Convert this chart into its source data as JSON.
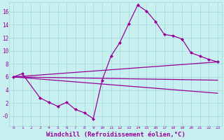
{
  "bg_color": "#c8f0f0",
  "line_color": "#990099",
  "grid_color": "#a0d8d8",
  "xlabel": "Windchill (Refroidissement éolien,°C)",
  "xlabel_color": "#990099",
  "ylim": [
    -1.5,
    17.5
  ],
  "xlim": [
    -0.5,
    23.5
  ],
  "yticks": [
    0,
    2,
    4,
    6,
    8,
    10,
    12,
    14,
    16
  ],
  "ytick_labels": [
    "-0",
    "2",
    "4",
    "6",
    "8",
    "10",
    "12",
    "14",
    "16"
  ],
  "xticks": [
    0,
    1,
    2,
    3,
    4,
    5,
    6,
    7,
    8,
    9,
    10,
    11,
    12,
    13,
    14,
    15,
    16,
    17,
    18,
    19,
    20,
    21,
    22,
    23
  ],
  "line1_x": [
    0,
    1,
    3,
    4,
    5,
    6,
    7,
    8,
    9,
    10,
    11,
    12,
    13,
    14,
    15,
    16,
    17,
    18,
    19,
    20,
    21,
    22,
    23
  ],
  "line1_y": [
    6.0,
    6.5,
    2.8,
    2.1,
    1.5,
    2.1,
    1.0,
    0.5,
    -0.4,
    5.5,
    9.2,
    11.3,
    14.2,
    17.0,
    16.1,
    14.5,
    12.5,
    12.3,
    11.8,
    9.7,
    9.2,
    8.7,
    8.3
  ],
  "line2_x": [
    0,
    23
  ],
  "line2_y": [
    6.0,
    8.3
  ],
  "line3_x": [
    0,
    23
  ],
  "line3_y": [
    6.0,
    5.5
  ],
  "line4_x": [
    0,
    23
  ],
  "line4_y": [
    6.0,
    3.5
  ],
  "markersize": 2.5,
  "linewidth": 0.9,
  "xlabel_fontsize": 6.5
}
